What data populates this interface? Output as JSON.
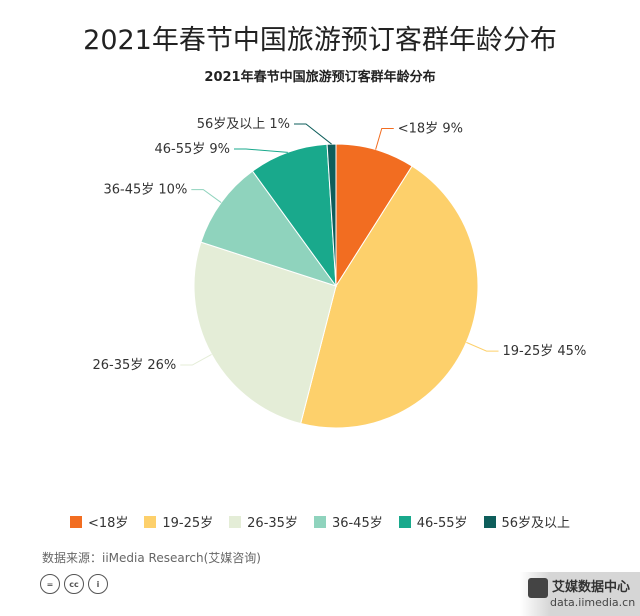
{
  "header": {
    "main_title": "2021年春节中国旅游预订客群年龄分布",
    "chart_title": "2021年春节中国旅游预订客群年龄分布"
  },
  "chart_data": {
    "type": "pie",
    "categories": [
      "<18岁",
      "19-25岁",
      "26-35岁",
      "36-45岁",
      "46-55岁",
      "56岁及以上"
    ],
    "values": [
      9,
      45,
      26,
      10,
      9,
      1
    ],
    "unit": "%",
    "labels": [
      "<18岁 9%",
      "19-25岁 45%",
      "26-35岁 26%",
      "36-45岁 10%",
      "46-55岁 9%",
      "56岁及以上 1%"
    ],
    "colors": [
      "#f26d21",
      "#fdd06b",
      "#e4edd7",
      "#8fd3bd",
      "#19a98c",
      "#0e5e5b"
    ],
    "legend_position": "bottom"
  },
  "legend": {
    "items": [
      "<18岁",
      "19-25岁",
      "26-35岁",
      "36-45岁",
      "46-55岁",
      "56岁及以上"
    ]
  },
  "footer": {
    "source": "数据来源：iiMedia Research(艾媒咨询)",
    "cc_icons": [
      "=",
      "cc",
      "i"
    ],
    "watermark_title": "艾媒数据中心",
    "watermark_url": "data.iimedia.cn"
  }
}
